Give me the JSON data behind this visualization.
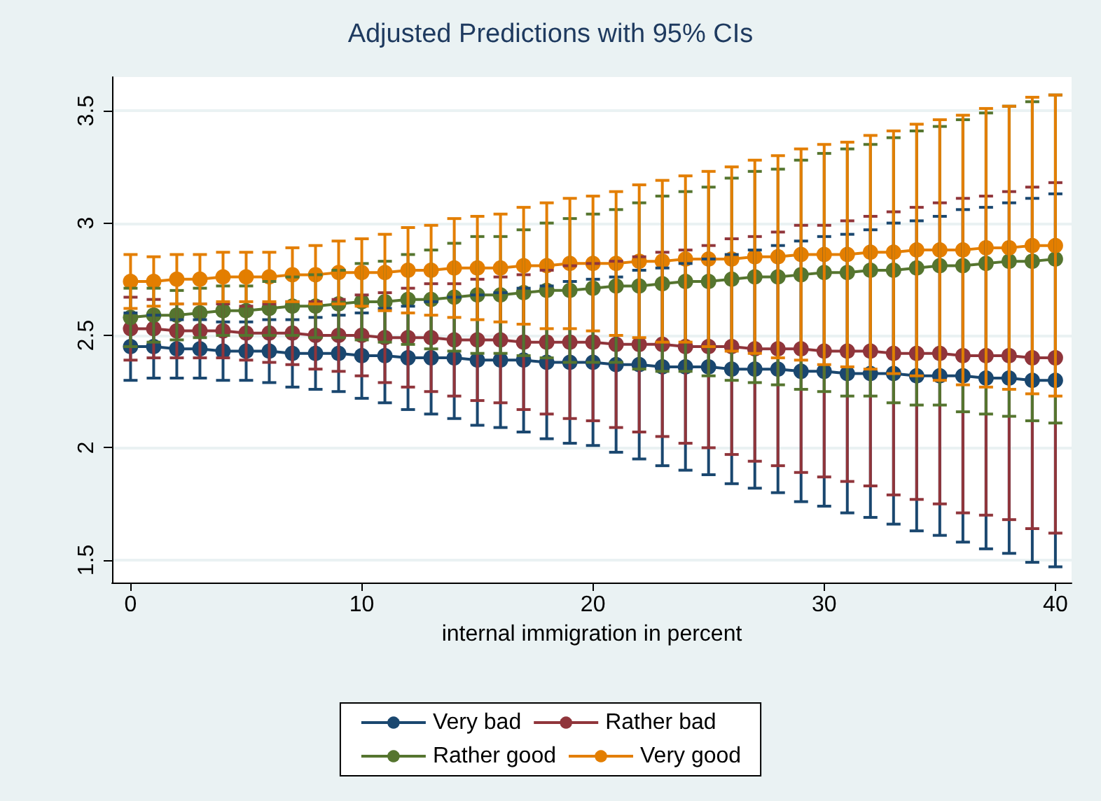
{
  "chart_data": {
    "type": "line",
    "title": "Adjusted Predictions with 95% CIs",
    "xlabel": "internal immigration in percent",
    "x": [
      0,
      1,
      2,
      3,
      4,
      5,
      6,
      7,
      8,
      9,
      10,
      11,
      12,
      13,
      14,
      15,
      16,
      17,
      18,
      19,
      20,
      21,
      22,
      23,
      24,
      25,
      26,
      27,
      28,
      29,
      30,
      31,
      32,
      33,
      34,
      35,
      36,
      37,
      38,
      39,
      40
    ],
    "xlim": [
      -0.8,
      40.7
    ],
    "xticks": [
      0,
      10,
      20,
      30,
      40
    ],
    "ylim": [
      1.4,
      3.65
    ],
    "yticks": [
      1.5,
      2,
      2.5,
      3,
      3.5
    ],
    "grid": "y",
    "legend": "bottom",
    "marker": "circle",
    "line_style": "solid",
    "series": [
      {
        "name": "Very bad",
        "color": "#1a476f",
        "values": [
          2.45,
          2.45,
          2.44,
          2.44,
          2.43,
          2.43,
          2.43,
          2.42,
          2.42,
          2.42,
          2.41,
          2.41,
          2.4,
          2.4,
          2.4,
          2.39,
          2.39,
          2.39,
          2.38,
          2.38,
          2.38,
          2.37,
          2.37,
          2.36,
          2.36,
          2.36,
          2.35,
          2.35,
          2.35,
          2.34,
          2.34,
          2.33,
          2.33,
          2.33,
          2.32,
          2.32,
          2.32,
          2.31,
          2.31,
          2.3,
          2.3
        ],
        "errors": [
          0.15,
          0.14,
          0.13,
          0.13,
          0.13,
          0.13,
          0.14,
          0.15,
          0.16,
          0.17,
          0.19,
          0.21,
          0.23,
          0.25,
          0.27,
          0.29,
          0.3,
          0.32,
          0.34,
          0.36,
          0.37,
          0.39,
          0.42,
          0.44,
          0.46,
          0.48,
          0.51,
          0.53,
          0.55,
          0.58,
          0.6,
          0.62,
          0.64,
          0.67,
          0.69,
          0.71,
          0.74,
          0.76,
          0.78,
          0.81,
          0.83
        ]
      },
      {
        "name": "Rather bad",
        "color": "#90353b",
        "values": [
          2.53,
          2.53,
          2.52,
          2.52,
          2.52,
          2.51,
          2.51,
          2.51,
          2.5,
          2.5,
          2.5,
          2.49,
          2.49,
          2.49,
          2.48,
          2.48,
          2.48,
          2.47,
          2.47,
          2.47,
          2.47,
          2.46,
          2.46,
          2.46,
          2.45,
          2.45,
          2.45,
          2.44,
          2.44,
          2.44,
          2.43,
          2.43,
          2.43,
          2.42,
          2.42,
          2.42,
          2.41,
          2.41,
          2.41,
          2.4,
          2.4
        ],
        "errors": [
          0.14,
          0.13,
          0.12,
          0.12,
          0.12,
          0.12,
          0.13,
          0.14,
          0.15,
          0.16,
          0.18,
          0.2,
          0.22,
          0.24,
          0.25,
          0.27,
          0.28,
          0.3,
          0.32,
          0.34,
          0.35,
          0.37,
          0.39,
          0.41,
          0.43,
          0.45,
          0.48,
          0.5,
          0.52,
          0.55,
          0.56,
          0.58,
          0.6,
          0.63,
          0.65,
          0.67,
          0.7,
          0.71,
          0.73,
          0.76,
          0.78
        ]
      },
      {
        "name": "Rather good",
        "color": "#55752f",
        "values": [
          2.58,
          2.59,
          2.59,
          2.6,
          2.61,
          2.61,
          2.62,
          2.63,
          2.63,
          2.64,
          2.65,
          2.65,
          2.66,
          2.66,
          2.67,
          2.68,
          2.68,
          2.69,
          2.7,
          2.7,
          2.71,
          2.72,
          2.72,
          2.73,
          2.74,
          2.74,
          2.75,
          2.76,
          2.76,
          2.77,
          2.78,
          2.78,
          2.79,
          2.79,
          2.8,
          2.81,
          2.81,
          2.82,
          2.83,
          2.83,
          2.84
        ],
        "errors": [
          0.13,
          0.12,
          0.11,
          0.11,
          0.11,
          0.11,
          0.12,
          0.13,
          0.14,
          0.15,
          0.17,
          0.18,
          0.2,
          0.22,
          0.24,
          0.26,
          0.26,
          0.28,
          0.3,
          0.32,
          0.33,
          0.34,
          0.37,
          0.39,
          0.4,
          0.42,
          0.45,
          0.47,
          0.48,
          0.51,
          0.53,
          0.55,
          0.56,
          0.59,
          0.61,
          0.62,
          0.65,
          0.67,
          0.69,
          0.71,
          0.73
        ]
      },
      {
        "name": "Very good",
        "color": "#e37e00",
        "values": [
          2.74,
          2.74,
          2.75,
          2.75,
          2.76,
          2.76,
          2.76,
          2.77,
          2.77,
          2.78,
          2.78,
          2.78,
          2.79,
          2.79,
          2.8,
          2.8,
          2.8,
          2.81,
          2.81,
          2.82,
          2.82,
          2.82,
          2.83,
          2.83,
          2.84,
          2.84,
          2.84,
          2.85,
          2.85,
          2.86,
          2.86,
          2.86,
          2.87,
          2.87,
          2.88,
          2.88,
          2.88,
          2.89,
          2.89,
          2.9,
          2.9
        ],
        "errors": [
          0.12,
          0.11,
          0.11,
          0.11,
          0.11,
          0.11,
          0.11,
          0.12,
          0.13,
          0.14,
          0.15,
          0.17,
          0.19,
          0.2,
          0.22,
          0.23,
          0.24,
          0.26,
          0.28,
          0.29,
          0.3,
          0.32,
          0.34,
          0.36,
          0.37,
          0.39,
          0.41,
          0.43,
          0.45,
          0.47,
          0.49,
          0.5,
          0.52,
          0.54,
          0.56,
          0.58,
          0.6,
          0.62,
          0.63,
          0.66,
          0.67
        ]
      }
    ]
  }
}
